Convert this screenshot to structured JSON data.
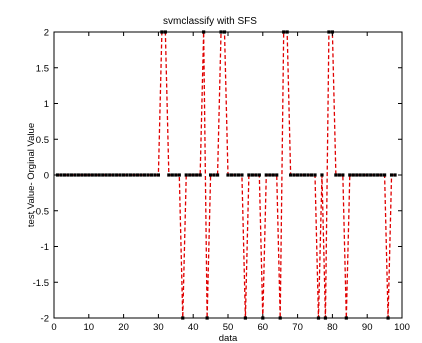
{
  "chart_data": {
    "type": "line",
    "title": "svmclassify with SFS",
    "xlabel": "data",
    "ylabel": "test Value- Orginal Value",
    "xlim": [
      0,
      100
    ],
    "ylim": [
      -2,
      2
    ],
    "xticks": [
      0,
      10,
      20,
      30,
      40,
      50,
      60,
      70,
      80,
      90,
      100
    ],
    "yticks": [
      -2,
      -1.5,
      -1,
      -0.5,
      0,
      0.5,
      1,
      1.5,
      2
    ],
    "xtick_labels": [
      "0",
      "10",
      "20",
      "30",
      "40",
      "50",
      "60",
      "70",
      "80",
      "90",
      "100"
    ],
    "ytick_labels": [
      "-2",
      "-1.5",
      "-1",
      "-0.5",
      "0",
      "0.5",
      "1",
      "1.5",
      "2"
    ],
    "grid": false,
    "series": [
      {
        "line_color": "#e00000",
        "line_style": "dashed",
        "marker_color": "#000000",
        "marker": "square",
        "x": [
          1,
          2,
          3,
          4,
          5,
          6,
          7,
          8,
          9,
          10,
          11,
          12,
          13,
          14,
          15,
          16,
          17,
          18,
          19,
          20,
          21,
          22,
          23,
          24,
          25,
          26,
          27,
          28,
          29,
          30,
          31,
          32,
          33,
          34,
          35,
          36,
          37,
          38,
          39,
          40,
          41,
          42,
          43,
          44,
          45,
          46,
          47,
          48,
          49,
          50,
          51,
          52,
          53,
          54,
          55,
          56,
          57,
          58,
          59,
          60,
          61,
          62,
          63,
          64,
          65,
          66,
          67,
          68,
          69,
          70,
          71,
          72,
          73,
          74,
          75,
          76,
          77,
          78,
          79,
          80,
          81,
          82,
          83,
          84,
          85,
          86,
          87,
          88,
          89,
          90,
          91,
          92,
          93,
          94,
          95,
          96,
          97,
          98
        ],
        "y": [
          0,
          0,
          0,
          0,
          0,
          0,
          0,
          0,
          0,
          0,
          0,
          0,
          0,
          0,
          0,
          0,
          0,
          0,
          0,
          0,
          0,
          0,
          0,
          0,
          0,
          0,
          0,
          0,
          0,
          0,
          2,
          2,
          0,
          0,
          0,
          0,
          -2,
          0,
          0,
          0,
          0,
          0,
          2,
          -2,
          0,
          0,
          0,
          2,
          2,
          0,
          0,
          0,
          0,
          0,
          -2,
          0,
          0,
          0,
          0,
          -2,
          0,
          0,
          0,
          0,
          -2,
          2,
          2,
          0,
          0,
          0,
          0,
          0,
          0,
          0,
          0,
          -2,
          0,
          -2,
          2,
          2,
          0,
          0,
          0,
          -2,
          0,
          0,
          0,
          0,
          0,
          0,
          0,
          0,
          0,
          0,
          0,
          -2,
          0,
          0
        ]
      }
    ]
  }
}
